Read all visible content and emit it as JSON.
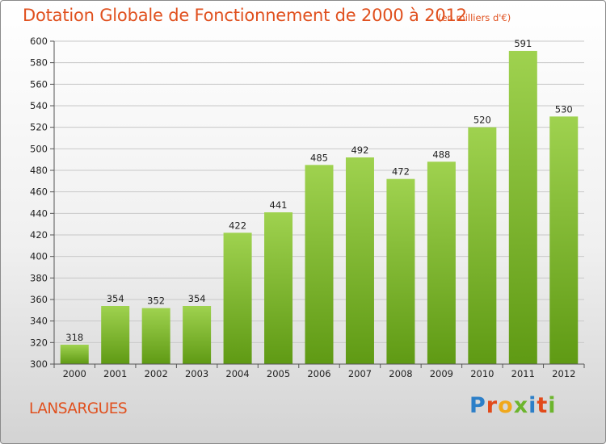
{
  "title": "Dotation Globale de Fonctionnement de 2000 à 2012",
  "subtitle": "(en milliers d'€)",
  "city": "LANSARGUES",
  "brand": {
    "text": "Proxiti",
    "letter_colors": [
      "#2c7fc8",
      "#e24a1a",
      "#f0a81c",
      "#6cb52d",
      "#2c7fc8",
      "#e24a1a",
      "#6cb52d"
    ]
  },
  "colors": {
    "title": "#e0501e",
    "bar_top": "#9fd24f",
    "bar_bottom": "#5f9a14",
    "grid": "#c8c8c8"
  },
  "chart_data": {
    "type": "bar",
    "title": "Dotation Globale de Fonctionnement de 2000 à 2012",
    "subtitle": "(en milliers d'€)",
    "categories": [
      "2000",
      "2001",
      "2002",
      "2003",
      "2004",
      "2005",
      "2006",
      "2007",
      "2008",
      "2009",
      "2010",
      "2011",
      "2012"
    ],
    "values": [
      318,
      354,
      352,
      354,
      422,
      441,
      485,
      492,
      472,
      488,
      520,
      591,
      530
    ],
    "ylim": [
      300,
      600
    ],
    "yticks": [
      300,
      320,
      340,
      360,
      380,
      400,
      420,
      440,
      460,
      480,
      500,
      520,
      540,
      560,
      580,
      600
    ],
    "grid": true,
    "data_labels": true
  }
}
